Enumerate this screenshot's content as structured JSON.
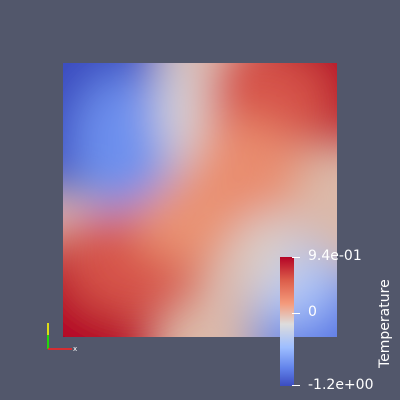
{
  "scene": {
    "background_color": "#52576b",
    "scalar_field": "Temperature"
  },
  "colorbar": {
    "title": "Temperature",
    "max_label": "9.4e-01",
    "mid_label": "0",
    "min_label": "-1.2e+00",
    "colormap": "coolwarm",
    "color_low": "#3b4cc0",
    "color_mid": "#dddcdc",
    "color_high": "#b40426"
  },
  "orientation_axes": {
    "x_axis_label": "x",
    "x_color": "#ff0000",
    "y_color": "#ffff00",
    "z_color": "#00ff00"
  }
}
